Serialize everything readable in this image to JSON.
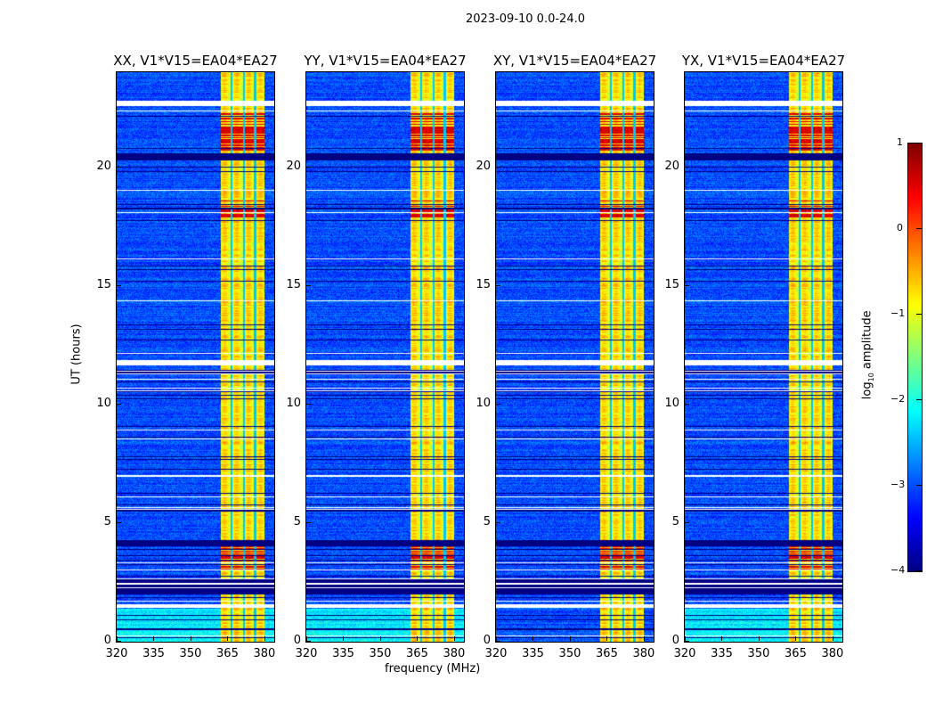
{
  "chart_data": {
    "type": "heatmap",
    "title": "2023-09-10 0.0-24.0",
    "xlabel": "frequency (MHz)",
    "ylabel": "UT (hours)",
    "xlim": [
      320,
      384
    ],
    "ylim": [
      0,
      24
    ],
    "xticks": [
      "320",
      "335",
      "350",
      "365",
      "380"
    ],
    "yticks": [
      "0",
      "5",
      "10",
      "15",
      "20"
    ],
    "panels": [
      {
        "title": "XX, V1*V15=EA04*EA27"
      },
      {
        "title": "YY, V1*V15=EA04*EA27"
      },
      {
        "title": "XY, V1*V15=EA04*EA27"
      },
      {
        "title": "YX, V1*V15=EA04*EA27"
      }
    ],
    "colorbar": {
      "label_prefix": "log",
      "label_sub": "10",
      "label_suffix": " amplitude",
      "range": [
        -4,
        1
      ],
      "ticks": [
        "−4",
        "−3",
        "−2",
        "−1",
        "0",
        "1"
      ],
      "colormap": "jet"
    },
    "background_level": -3,
    "band": {
      "freq_range_mhz": [
        362,
        380
      ],
      "level": -1,
      "channel_gaps_mhz": [
        366.5,
        371.5,
        376
      ]
    },
    "flagged_hours": [
      [
        1.45,
        1.6
      ],
      [
        11.65,
        11.9
      ],
      [
        22.6,
        22.8
      ]
    ],
    "dark_hours": [
      [
        2.0,
        2.7
      ],
      [
        4.05,
        4.3
      ],
      [
        20.3,
        20.6
      ]
    ],
    "high_amplitude_hours": [
      [
        3.0,
        4.3
      ],
      [
        17.9,
        18.6
      ],
      [
        20.5,
        22.4
      ]
    ],
    "elevated_background_hours": [
      [
        0,
        1.4
      ]
    ]
  }
}
